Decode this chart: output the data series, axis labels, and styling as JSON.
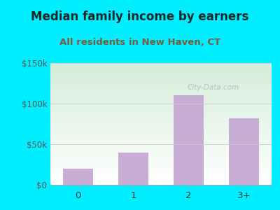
{
  "title": "Median family income by earners",
  "subtitle": "All residents in New Haven, CT",
  "categories": [
    "0",
    "1",
    "2",
    "3+"
  ],
  "values": [
    20000,
    40000,
    110000,
    82000
  ],
  "bar_color": "#c8aed4",
  "outer_bg": "#00eeff",
  "plot_bg_top": "#d4edda",
  "plot_bg_bottom": "#ffffff",
  "title_color": "#1a2a2a",
  "subtitle_color": "#7a5a3a",
  "ytick_labels": [
    "$0",
    "$50k",
    "$100k",
    "$150k"
  ],
  "ytick_values": [
    0,
    50000,
    100000,
    150000
  ],
  "ylim": [
    0,
    150000
  ],
  "title_fontsize": 12,
  "subtitle_fontsize": 9.5,
  "watermark": "City-Data.com",
  "watermark_color": "#b0b0b0"
}
